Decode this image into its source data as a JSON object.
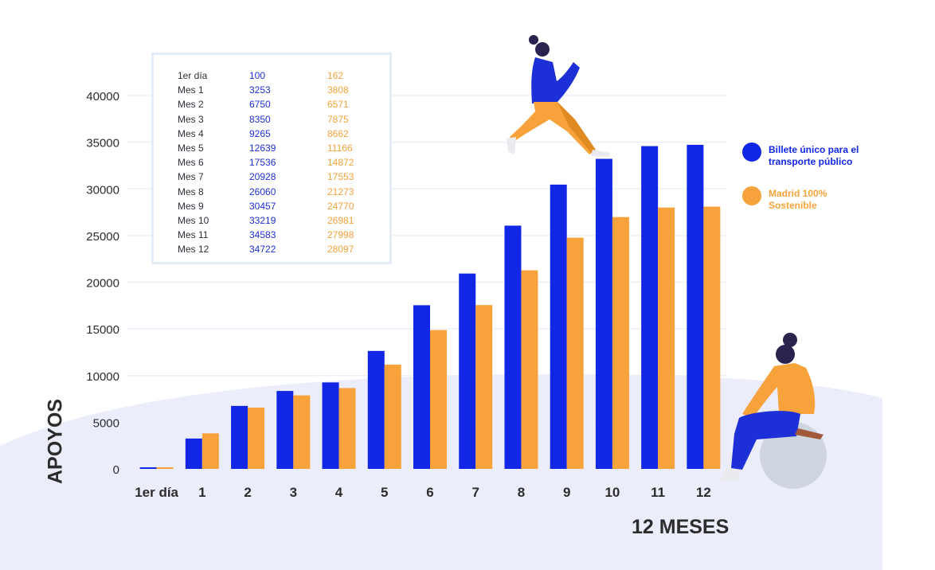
{
  "chart_data": {
    "type": "bar",
    "categories": [
      "1er día",
      "1",
      "2",
      "3",
      "4",
      "5",
      "6",
      "7",
      "8",
      "9",
      "10",
      "11",
      "12"
    ],
    "series": [
      {
        "name": "Billete único para el transporte público",
        "values": [
          100,
          3253,
          6750,
          8350,
          9265,
          12639,
          17536,
          20928,
          26060,
          30457,
          33219,
          34583,
          34722
        ]
      },
      {
        "name": "Madrid 100% Sostenible",
        "values": [
          162,
          3808,
          6571,
          7875,
          8662,
          11166,
          14872,
          17553,
          21273,
          24770,
          26981,
          27998,
          28097
        ]
      }
    ],
    "xlabel": "12 MESES",
    "ylabel": "APOYOS",
    "yticks": [
      "0",
      "5000",
      "10000",
      "15000",
      "20000",
      "25000",
      "30000",
      "35000",
      "40000"
    ],
    "ylim": [
      0,
      40000
    ],
    "grid": true,
    "legend": "right"
  },
  "colors": {
    "series1": "#1226e6",
    "series2": "#f7a23a",
    "background_blob": "#ecedfb",
    "grid": "#e6eef8"
  },
  "table": {
    "rows": [
      {
        "label": "1er día",
        "a": "100",
        "b": "162"
      },
      {
        "label": "Mes 1",
        "a": "3253",
        "b": "3808"
      },
      {
        "label": "Mes 2",
        "a": "6750",
        "b": "6571"
      },
      {
        "label": "Mes 3",
        "a": "8350",
        "b": "7875"
      },
      {
        "label": "Mes 4",
        "a": "9265",
        "b": "8662"
      },
      {
        "label": "Mes 5",
        "a": "12639",
        "b": "11166"
      },
      {
        "label": "Mes 6",
        "a": "17536",
        "b": "14872"
      },
      {
        "label": "Mes 7",
        "a": "20928",
        "b": "17553"
      },
      {
        "label": "Mes 8",
        "a": "26060",
        "b": "21273"
      },
      {
        "label": "Mes 9",
        "a": "30457",
        "b": "24770"
      },
      {
        "label": "Mes 10",
        "a": "33219",
        "b": "26981"
      },
      {
        "label": "Mes 11",
        "a": "34583",
        "b": "27998"
      },
      {
        "label": "Mes 12",
        "a": "34722",
        "b": "28097"
      }
    ]
  },
  "legend": [
    {
      "label": "Billete único para el transporte público",
      "color": "#1226e6"
    },
    {
      "label": "Madrid 100% Sostenible",
      "color": "#f7a23a"
    }
  ],
  "illustrations": [
    "walking-woman-illustration",
    "sitting-woman-illustration"
  ]
}
